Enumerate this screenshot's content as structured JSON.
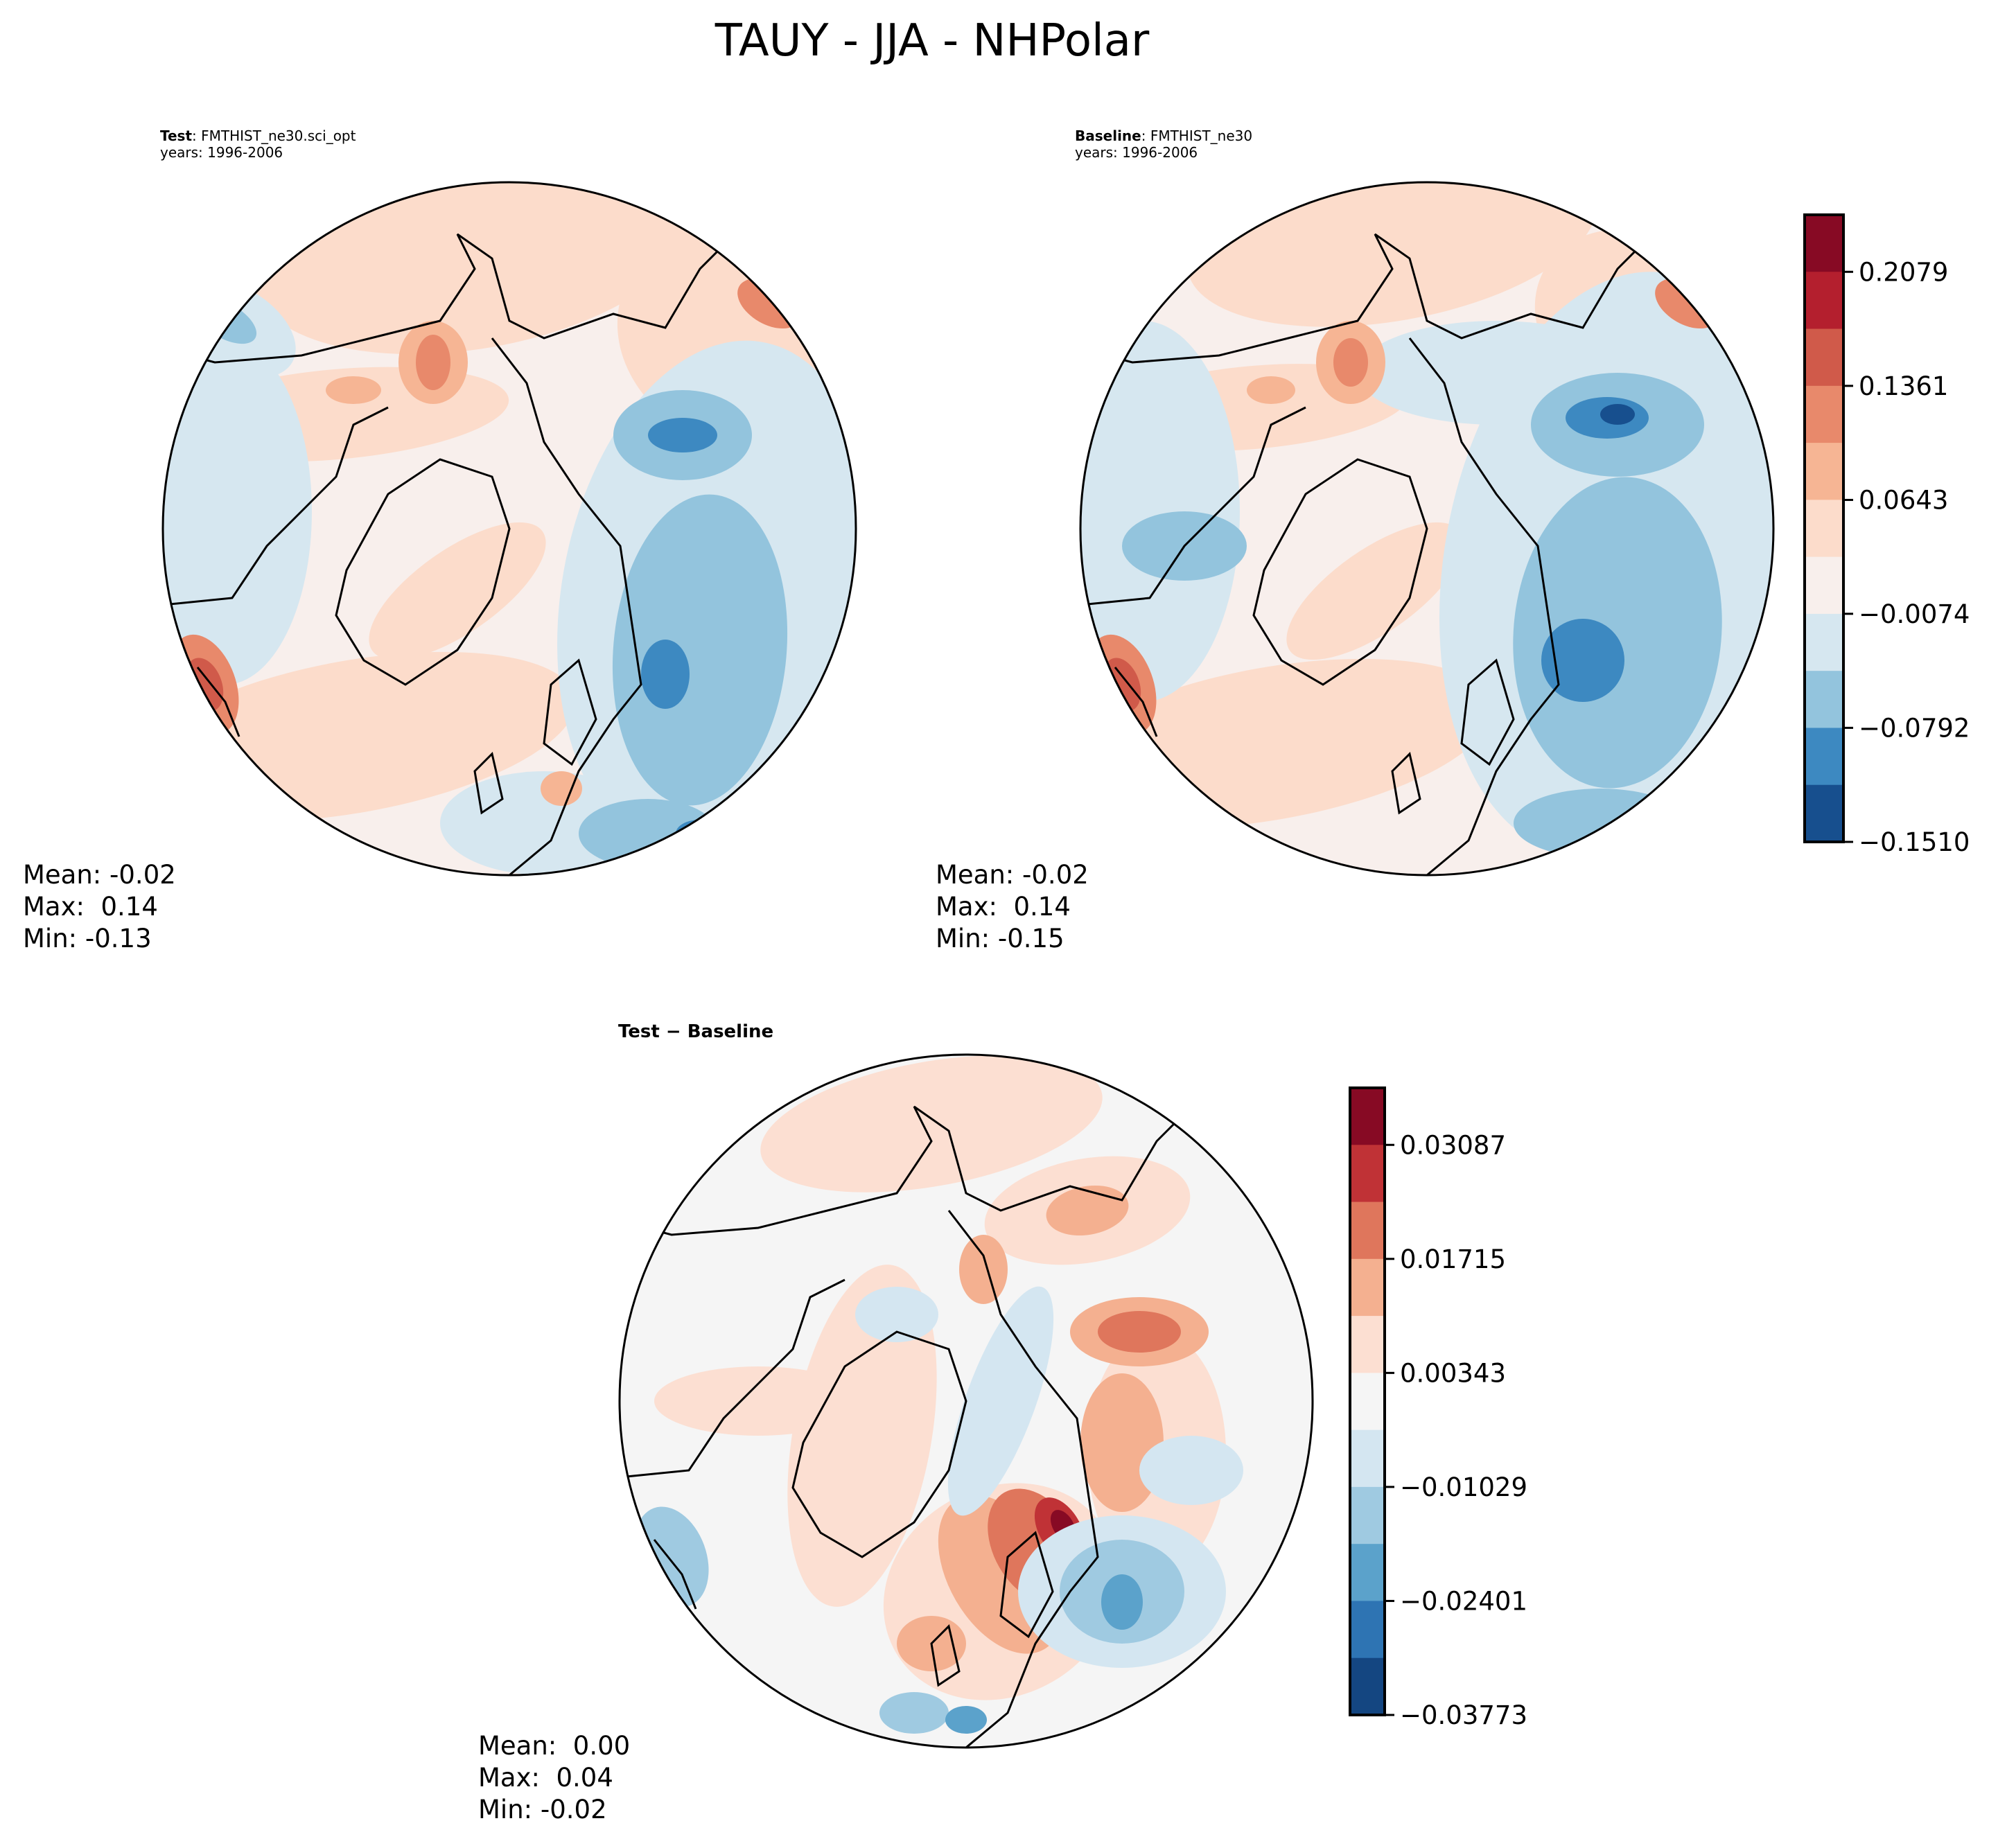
{
  "chart_data": {
    "type": "heatmap",
    "title": "TAUY - JJA - NHPolar",
    "panels": [
      {
        "id": "test",
        "label_bold": "Test",
        "label_rest": ": FMTHIST_ne30.sci_opt",
        "years": "years: 1996-2006",
        "projection": "north polar stereographic",
        "stats": {
          "mean": "Mean: -0.02",
          "max": "Max:  0.14",
          "min": "Min: -0.13"
        }
      },
      {
        "id": "baseline",
        "label_bold": "Baseline",
        "label_rest": ": FMTHIST_ne30",
        "years": "years: 1996-2006",
        "projection": "north polar stereographic",
        "stats": {
          "mean": "Mean: -0.02",
          "max": "Max:  0.14",
          "min": "Min: -0.15"
        }
      },
      {
        "id": "diff",
        "label_bold": "Test − Baseline",
        "projection": "north polar stereographic",
        "stats": {
          "mean": "Mean:  0.00",
          "max": "Max:  0.04",
          "min": "Min: -0.02"
        }
      }
    ],
    "colorbars": [
      {
        "for": "test-and-baseline",
        "range": [
          -0.151,
          0.2438
        ],
        "ticks": [
          "0.2079",
          "0.1361",
          "0.0643",
          "−0.0074",
          "−0.0792",
          "−0.1510"
        ],
        "tick_values": [
          0.2079,
          0.1361,
          0.0643,
          -0.0074,
          -0.0792,
          -0.151
        ],
        "colors": [
          "#870a24",
          "#b41f2e",
          "#d05a4a",
          "#e8896b",
          "#f6b594",
          "#fcdccb",
          "#f8efec",
          "#d6e7f0",
          "#93c4dd",
          "#3d89c1",
          "#174f8e"
        ]
      },
      {
        "for": "diff",
        "range": [
          -0.03773,
          0.03773
        ],
        "ticks": [
          "0.03087",
          "0.01715",
          "0.00343",
          "−0.01029",
          "−0.02401",
          "−0.03773"
        ],
        "tick_values": [
          0.03087,
          0.01715,
          0.00343,
          -0.01029,
          -0.02401,
          -0.03773
        ],
        "colors": [
          "#870a24",
          "#c03236",
          "#df765c",
          "#f4b090",
          "#fcdfd2",
          "#f5f5f5",
          "#d4e6f1",
          "#9fcae1",
          "#5ba2cb",
          "#2e74b3",
          "#144681"
        ]
      }
    ]
  }
}
